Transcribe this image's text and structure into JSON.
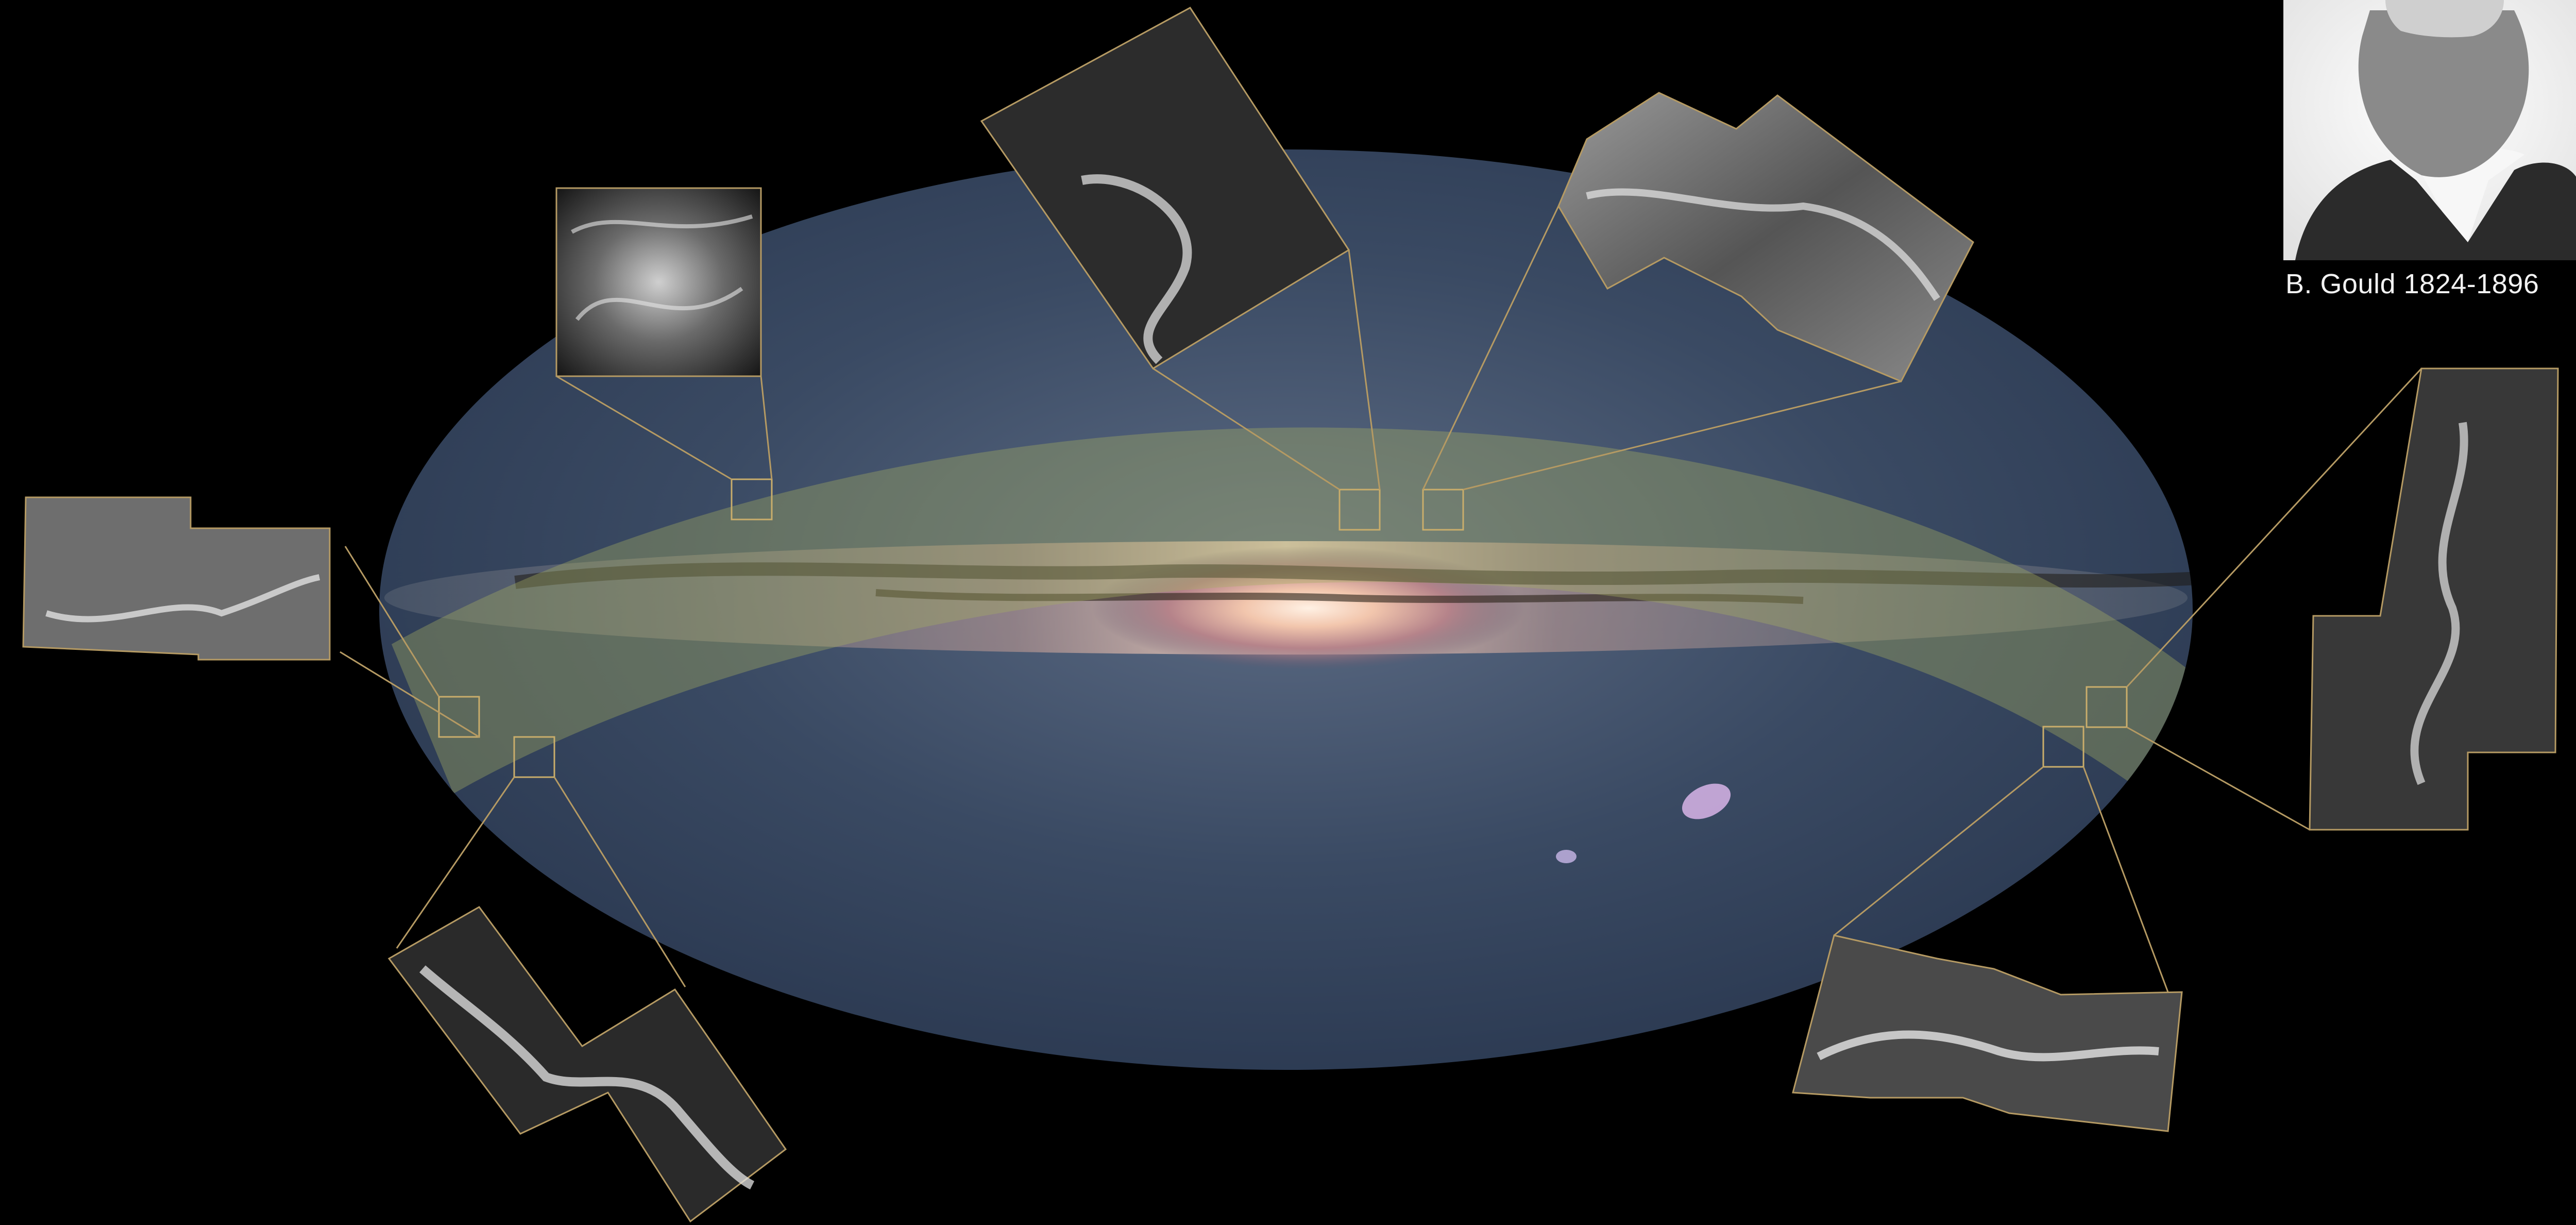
{
  "figure": {
    "portrait_caption": "B. Gould 1824-1896"
  },
  "colors": {
    "background": "#000000",
    "sky_ellipse": "#2b3a52",
    "gould_belt_band": "#9da25f",
    "inset_frame": "#b59a63",
    "galactic_core": "#f0c8b0"
  },
  "elements": {
    "sky_map": "Gaia all-sky Milky Way map in an elliptical projection",
    "band": "Gould Belt",
    "insets": [
      "cloud-inset-left-middle",
      "cloud-inset-upper-left",
      "cloud-inset-top-center",
      "cloud-inset-top-right",
      "cloud-inset-right",
      "cloud-inset-bottom-left",
      "cloud-inset-bottom-right"
    ]
  }
}
